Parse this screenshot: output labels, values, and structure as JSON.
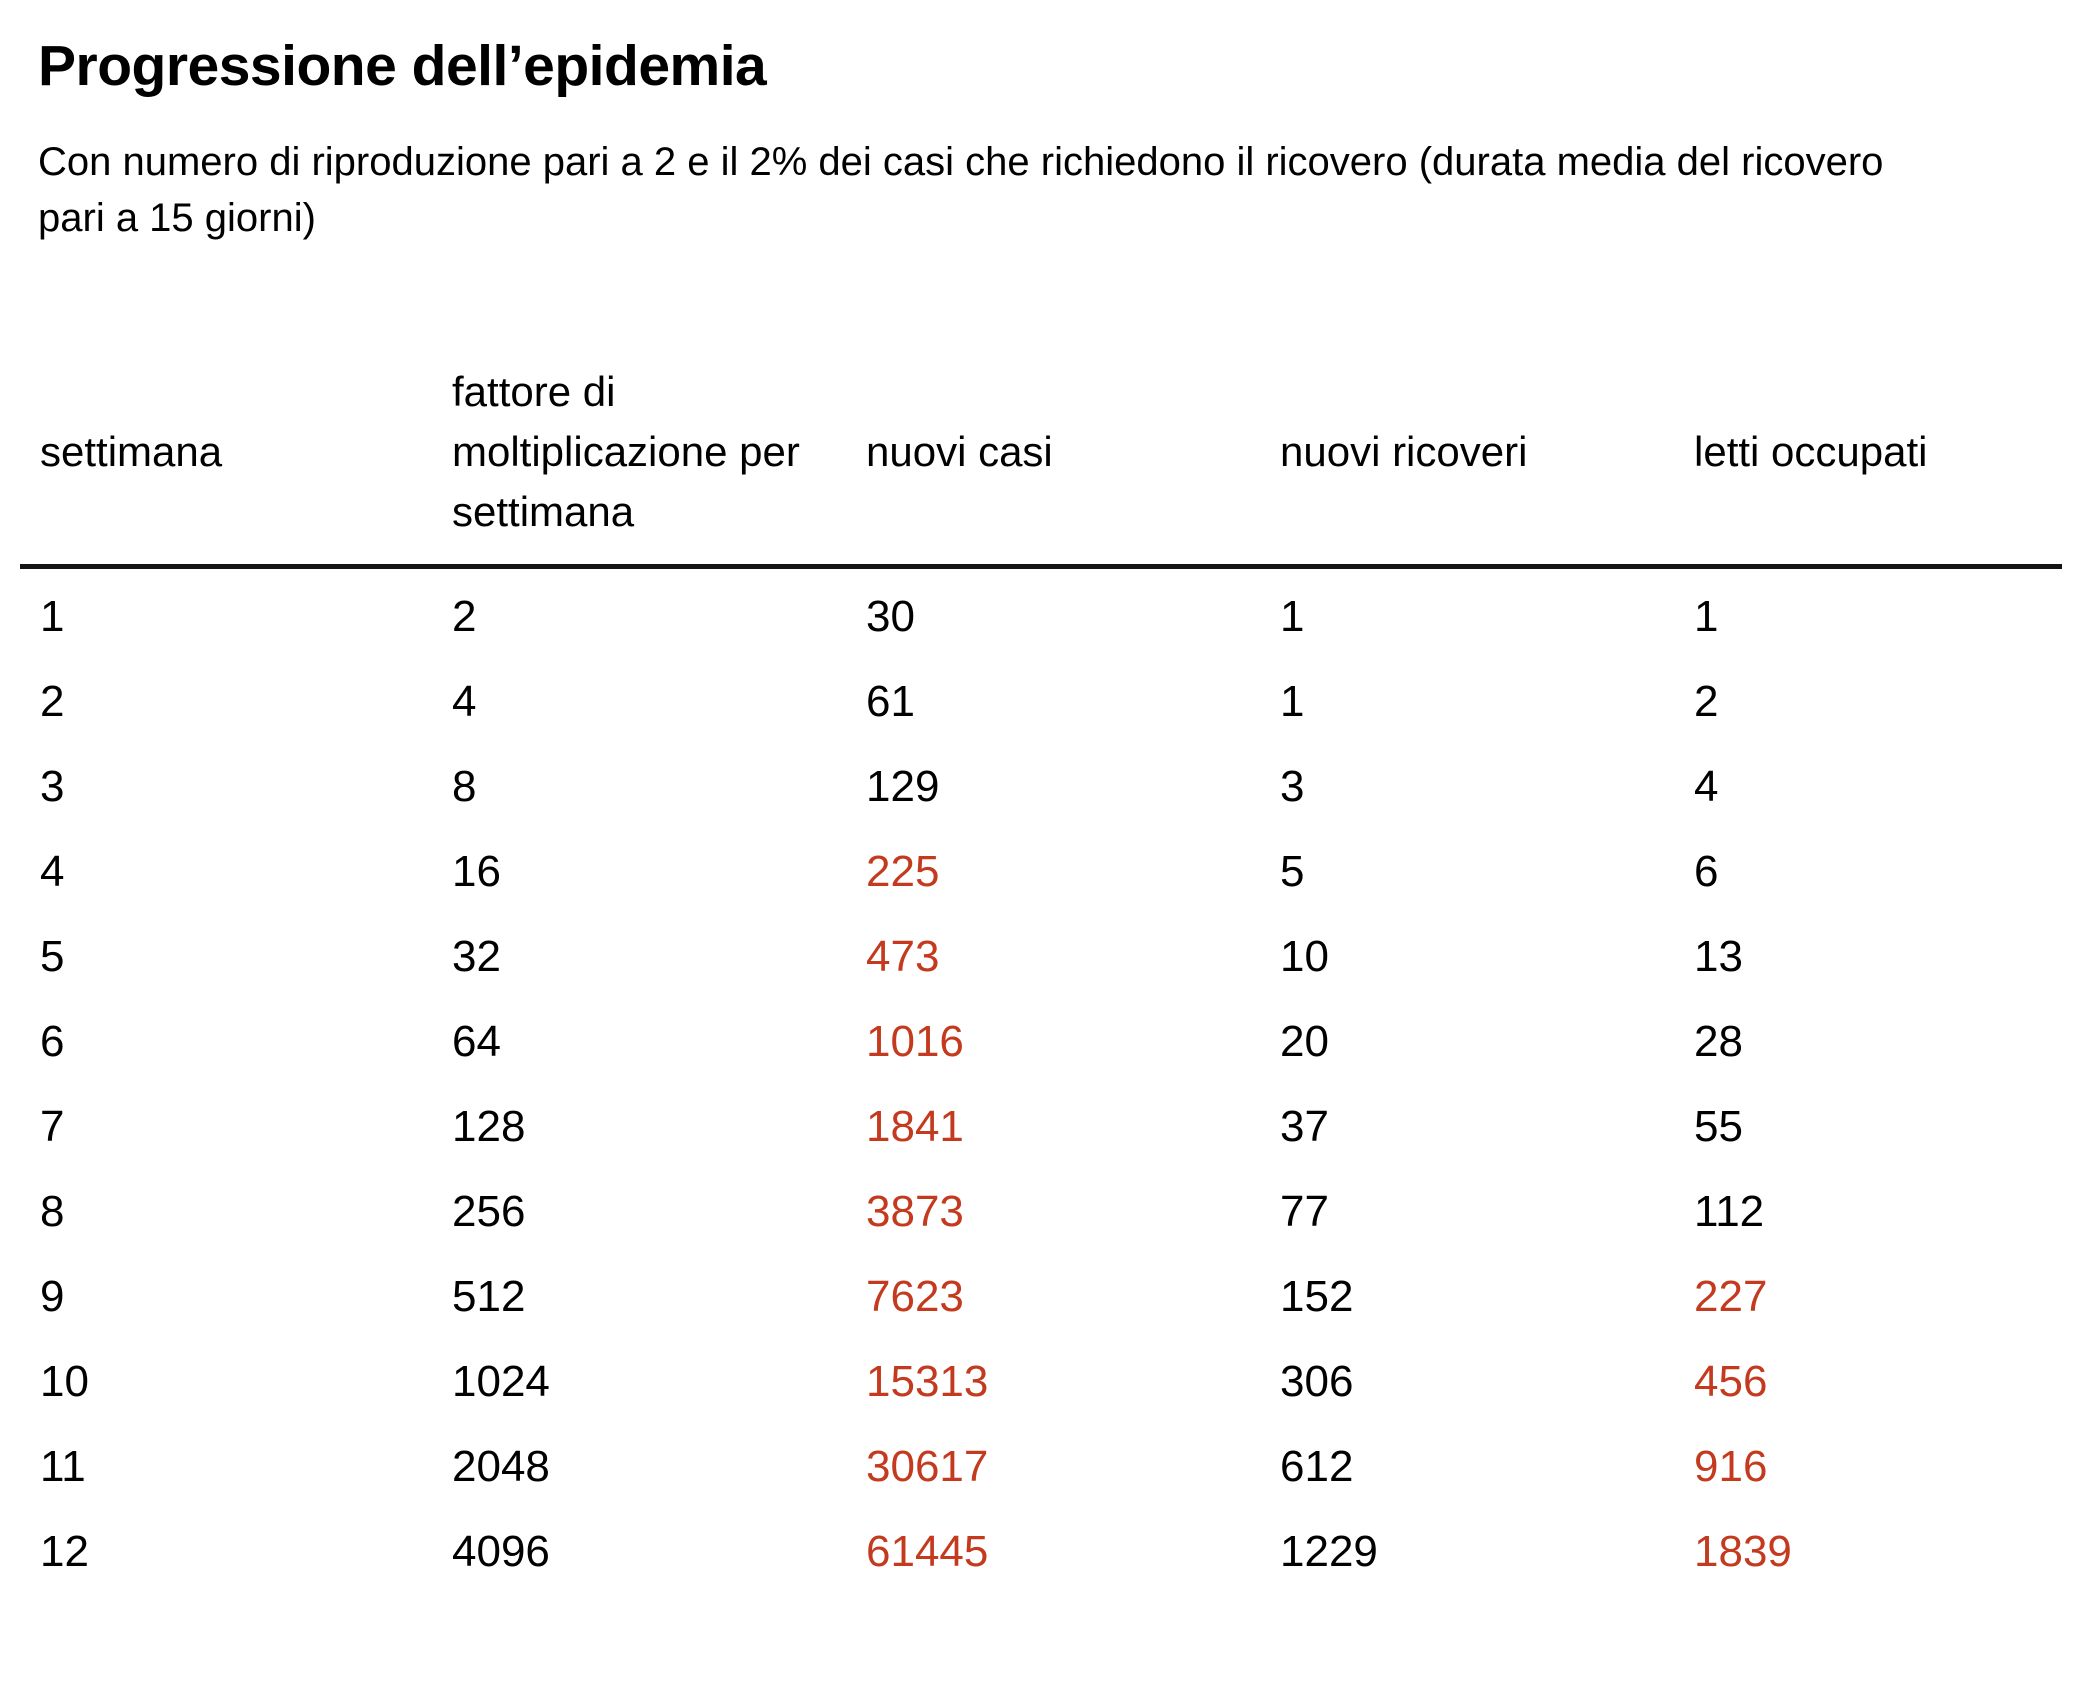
{
  "title": "Progressione dell’epidemia",
  "subtitle": "Con numero di riproduzione pari a 2 e il 2% dei casi che richiedono il ricovero (durata media del ricovero pari a 15 giorni)",
  "colors": {
    "text": "#000000",
    "accent_red": "#c43a1e",
    "separator": "#141414",
    "background": "#ffffff"
  },
  "table": {
    "columns": [
      {
        "label": "settimana"
      },
      {
        "label": "fattore di moltiplicazione per settimana"
      },
      {
        "label": "nuovi casi"
      },
      {
        "label": "nuovi ricoveri"
      },
      {
        "label": "letti occupati"
      }
    ],
    "rows": [
      [
        "1",
        "2",
        "30",
        "1",
        "1"
      ],
      [
        "2",
        "4",
        "61",
        "1",
        "2"
      ],
      [
        "3",
        "8",
        "129",
        "3",
        "4"
      ],
      [
        "4",
        "16",
        "225",
        "5",
        "6"
      ],
      [
        "5",
        "32",
        "473",
        "10",
        "13"
      ],
      [
        "6",
        "64",
        "1016",
        "20",
        "28"
      ],
      [
        "7",
        "128",
        "1841",
        "37",
        "55"
      ],
      [
        "8",
        "256",
        "3873",
        "77",
        "112"
      ],
      [
        "9",
        "512",
        "7623",
        "152",
        "227"
      ],
      [
        "10",
        "1024",
        "15313",
        "306",
        "456"
      ],
      [
        "11",
        "2048",
        "30617",
        "612",
        "916"
      ],
      [
        "12",
        "4096",
        "61445",
        "1229",
        "1839"
      ]
    ],
    "red_cells": [
      [
        3,
        2
      ],
      [
        4,
        2
      ],
      [
        5,
        2
      ],
      [
        6,
        2
      ],
      [
        7,
        2
      ],
      [
        8,
        2
      ],
      [
        9,
        2
      ],
      [
        10,
        2
      ],
      [
        11,
        2
      ],
      [
        8,
        4
      ],
      [
        9,
        4
      ],
      [
        10,
        4
      ],
      [
        11,
        4
      ]
    ]
  },
  "chart_data": {
    "type": "table",
    "title": "Progressione dell’epidemia",
    "subtitle": "Con numero di riproduzione pari a 2 e il 2% dei casi che richiedono il ricovero (durata media del ricovero pari a 15 giorni)",
    "columns": [
      "settimana",
      "fattore di moltiplicazione per settimana",
      "nuovi casi",
      "nuovi ricoveri",
      "letti occupati"
    ],
    "rows": [
      [
        1,
        2,
        30,
        1,
        1
      ],
      [
        2,
        4,
        61,
        1,
        2
      ],
      [
        3,
        8,
        129,
        3,
        4
      ],
      [
        4,
        16,
        225,
        5,
        6
      ],
      [
        5,
        32,
        473,
        10,
        13
      ],
      [
        6,
        64,
        1016,
        20,
        28
      ],
      [
        7,
        128,
        1841,
        37,
        55
      ],
      [
        8,
        256,
        3873,
        77,
        112
      ],
      [
        9,
        512,
        7623,
        152,
        227
      ],
      [
        10,
        1024,
        15313,
        306,
        456
      ],
      [
        11,
        2048,
        30617,
        612,
        916
      ],
      [
        12,
        4096,
        61445,
        1229,
        1839
      ]
    ],
    "highlight_color": "#c43a1e",
    "highlighted_cells_note": "nuovi casi rows 4-12 and letti occupati rows 9-12 shown in red"
  }
}
